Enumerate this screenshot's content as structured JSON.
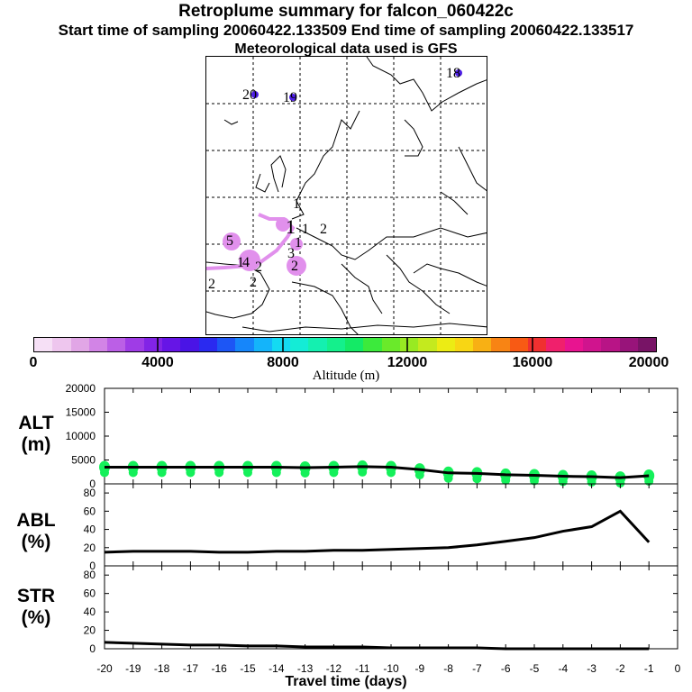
{
  "header": {
    "title": "Retroplume summary for falcon_060422c",
    "sampling": "Start time of sampling 20060422.133509     End time of sampling 20060422.133517",
    "meteo": "Meteorological data used is GFS"
  },
  "map": {
    "labels": [
      "18",
      "20",
      "19",
      "1",
      "1",
      "1",
      "2",
      "5",
      "1",
      "3",
      "4",
      "2",
      "2",
      "2",
      "2",
      "1"
    ]
  },
  "colorbar": {
    "title": "Altitude (m)",
    "ticks": [
      "0",
      "4000",
      "8000",
      "12000",
      "16000",
      "20000"
    ],
    "colors": [
      "#f6e0f6",
      "#eec6ee",
      "#e1a6e6",
      "#d284e6",
      "#bb5fe6",
      "#9f3ce6",
      "#8224e6",
      "#6615e6",
      "#4a14e6",
      "#2a2af0",
      "#1d56f5",
      "#1686fa",
      "#14b4fa",
      "#14daf2",
      "#14ecd6",
      "#14f0b0",
      "#14f08c",
      "#14ea66",
      "#3cea3c",
      "#6aea2a",
      "#98ea22",
      "#c4ea1e",
      "#ecec14",
      "#f8d614",
      "#f8b014",
      "#f88414",
      "#f85a14",
      "#f03030",
      "#f0206c",
      "#e81490",
      "#d0148e",
      "#b81486",
      "#98147a",
      "#781466"
    ]
  },
  "panels": [
    {
      "title_line1": "ALT",
      "title_line2": "(m)",
      "yticks": [
        "0",
        "5000",
        "10000",
        "15000",
        "20000"
      ]
    },
    {
      "title_line1": "ABL",
      "title_line2": "(%)",
      "yticks": [
        "0",
        "20",
        "40",
        "60",
        "80"
      ]
    },
    {
      "title_line1": "STR",
      "title_line2": "(%)",
      "yticks": [
        "0",
        "20",
        "40",
        "60",
        "80"
      ]
    }
  ],
  "xaxis": {
    "label": "Travel time (days)",
    "ticks": [
      "-20",
      "-19",
      "-18",
      "-17",
      "-16",
      "-15",
      "-14",
      "-13",
      "-12",
      "-11",
      "-10",
      "-9",
      "-8",
      "-7",
      "-6",
      "-5",
      "-4",
      "-3",
      "-2",
      "-1",
      "0"
    ]
  },
  "chart_data": [
    {
      "type": "line",
      "title": "ALT",
      "ylabel": "ALT (m)",
      "xlabel": "Travel time (days)",
      "xlim": [
        -20,
        0
      ],
      "ylim": [
        0,
        20000
      ],
      "x": [
        -20,
        -19,
        -18,
        -17,
        -16,
        -15,
        -14,
        -13,
        -12,
        -11,
        -10,
        -9,
        -8,
        -7,
        -6,
        -5,
        -4,
        -3,
        -2,
        -1
      ],
      "values": [
        3500,
        3500,
        3500,
        3500,
        3500,
        3500,
        3500,
        3400,
        3500,
        3600,
        3500,
        3000,
        2300,
        2200,
        1900,
        1800,
        1600,
        1500,
        1300,
        1700
      ],
      "spread_color": "#14f05a"
    },
    {
      "type": "line",
      "title": "ABL",
      "ylabel": "ABL (%)",
      "xlabel": "Travel time (days)",
      "xlim": [
        -20,
        0
      ],
      "ylim": [
        0,
        90
      ],
      "x": [
        -20,
        -19,
        -18,
        -17,
        -16,
        -15,
        -14,
        -13,
        -12,
        -11,
        -10,
        -9,
        -8,
        -7,
        -6,
        -5,
        -4,
        -3,
        -2,
        -1
      ],
      "values": [
        15,
        16,
        16,
        16,
        15,
        15,
        16,
        16,
        17,
        17,
        18,
        19,
        20,
        23,
        27,
        31,
        38,
        43,
        60,
        26
      ]
    },
    {
      "type": "line",
      "title": "STR",
      "ylabel": "STR (%)",
      "xlabel": "Travel time (days)",
      "xlim": [
        -20,
        0
      ],
      "ylim": [
        0,
        90
      ],
      "x": [
        -20,
        -19,
        -18,
        -17,
        -16,
        -15,
        -14,
        -13,
        -12,
        -11,
        -10,
        -9,
        -8,
        -7,
        -6,
        -5,
        -4,
        -3,
        -2,
        -1
      ],
      "values": [
        7,
        6,
        5,
        4,
        4,
        3,
        3,
        2,
        2,
        2,
        1,
        1,
        1,
        1,
        0,
        0,
        0,
        0,
        0,
        0
      ]
    }
  ]
}
